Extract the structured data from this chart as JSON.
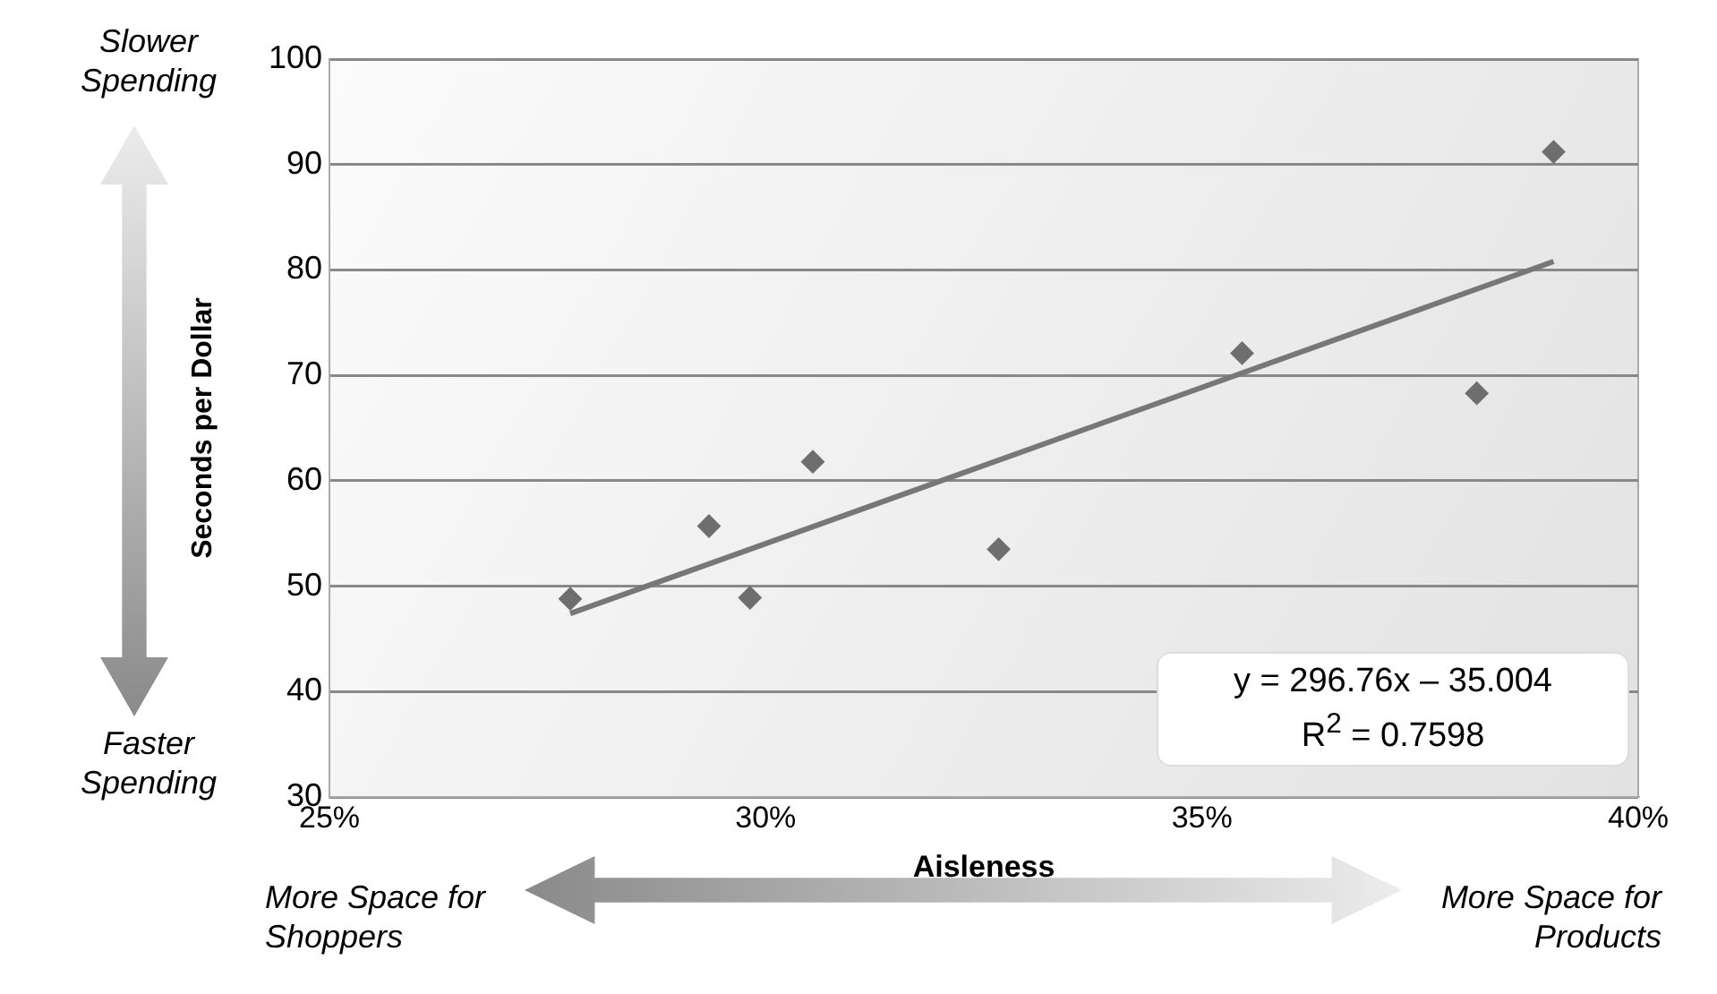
{
  "chart_data": {
    "type": "scatter",
    "xlabel": "Aisleness",
    "ylabel": "Seconds per Dollar",
    "xlim": [
      25,
      40
    ],
    "xticks": [
      {
        "value": 25,
        "label": "25%"
      },
      {
        "value": 30,
        "label": "30%"
      },
      {
        "value": 35,
        "label": "35%"
      },
      {
        "value": 40,
        "label": "40%"
      }
    ],
    "ylim": [
      30,
      100
    ],
    "yticks": [
      30,
      40,
      50,
      60,
      70,
      80,
      90,
      100
    ],
    "grid": "y",
    "legend": false,
    "series": [
      {
        "type": "scatter",
        "color": "#6e6e6e",
        "marker": "diamond",
        "x": [
          27.76,
          29.35,
          29.82,
          30.54,
          32.67,
          35.46,
          38.15,
          39.03
        ],
        "values": [
          48.8,
          55.7,
          48.9,
          61.8,
          53.5,
          72.1,
          68.3,
          91.2
        ]
      },
      {
        "type": "line",
        "color": "#777777",
        "marker": "none",
        "line_style": "solid",
        "x": [
          27.76,
          39.03
        ],
        "values": [
          47.4,
          80.8
        ]
      }
    ],
    "annotations": [
      "Slower Spending",
      "Faster Spending",
      "More Space for Shoppers",
      "More Space for Products",
      "y = 296.76x – 35.004",
      "R$^{2}$ = 0.7598"
    ]
  }
}
